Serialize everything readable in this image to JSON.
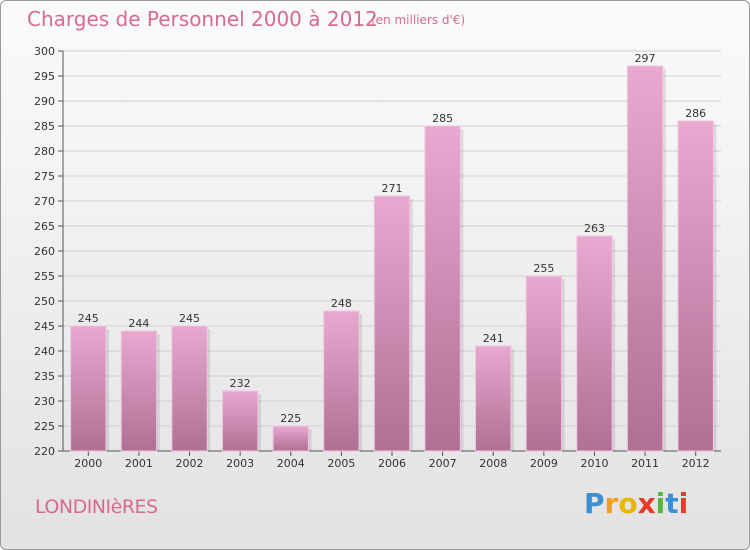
{
  "title": "Charges de Personnel 2000 à 2012",
  "subtitle": "(en milliers d'€)",
  "commune": "LONDINIèRES",
  "logo": {
    "letters": [
      "P",
      "r",
      "o",
      "x",
      "i",
      "t",
      "i"
    ],
    "colors": [
      "#3a8fd6",
      "#f0a020",
      "#e6b800",
      "#e43c2b",
      "#58b63c",
      "#3a8fd6",
      "#e43c2b"
    ]
  },
  "colors": {
    "bar_top": "#e8a8d0",
    "bar_bottom": "#b07095",
    "title": "#d86a90"
  },
  "chart_data": {
    "type": "bar",
    "categories": [
      "2000",
      "2001",
      "2002",
      "2003",
      "2004",
      "2005",
      "2006",
      "2007",
      "2008",
      "2009",
      "2010",
      "2011",
      "2012"
    ],
    "values": [
      245,
      244,
      245,
      232,
      225,
      248,
      271,
      285,
      241,
      255,
      263,
      297,
      286
    ],
    "ylim": [
      220,
      300
    ],
    "yticks": [
      220,
      225,
      230,
      235,
      240,
      245,
      250,
      255,
      260,
      265,
      270,
      275,
      280,
      285,
      290,
      295,
      300
    ],
    "grid": true
  }
}
